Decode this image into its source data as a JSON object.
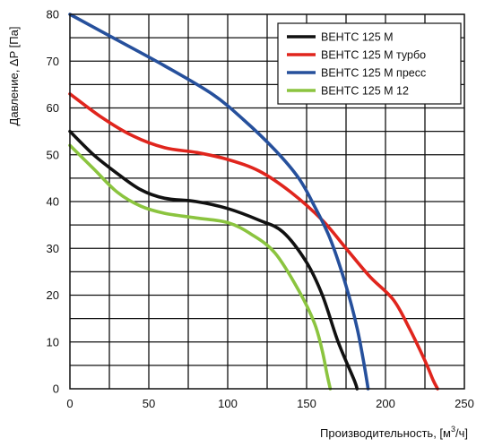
{
  "chart_data": {
    "type": "line",
    "xlabel": "Производительность, [м",
    "xlabel_sup": "3",
    "xlabel_tail": "/ч]",
    "ylabel": "Давление, ΔP [Па]",
    "xlim": [
      0,
      250
    ],
    "ylim": [
      0,
      80
    ],
    "x_ticks": [
      "0",
      "50",
      "100",
      "150",
      "200",
      "250"
    ],
    "y_ticks": [
      "0",
      "10",
      "20",
      "30",
      "40",
      "50",
      "60",
      "70",
      "80"
    ],
    "grid": true,
    "legend_position": "top-right",
    "series": [
      {
        "name": "ВЕНТС 125 М",
        "color": "#111111",
        "points": [
          [
            0,
            55
          ],
          [
            15,
            50
          ],
          [
            30,
            46
          ],
          [
            45,
            42.5
          ],
          [
            60,
            40.7
          ],
          [
            80,
            40
          ],
          [
            100,
            38.5
          ],
          [
            120,
            36
          ],
          [
            135,
            33.5
          ],
          [
            150,
            27
          ],
          [
            160,
            20
          ],
          [
            170,
            10
          ],
          [
            180,
            2
          ],
          [
            182,
            0
          ]
        ]
      },
      {
        "name": "ВЕНТС 125 М турбо",
        "color": "#e0251d",
        "points": [
          [
            0,
            63
          ],
          [
            20,
            58
          ],
          [
            40,
            54
          ],
          [
            60,
            51.5
          ],
          [
            80,
            50.5
          ],
          [
            100,
            49
          ],
          [
            120,
            46.5
          ],
          [
            140,
            42
          ],
          [
            160,
            36
          ],
          [
            175,
            30
          ],
          [
            190,
            24
          ],
          [
            205,
            19
          ],
          [
            215,
            13
          ],
          [
            225,
            6
          ],
          [
            230,
            2
          ],
          [
            233,
            0
          ]
        ]
      },
      {
        "name": "ВЕНТС 125 М пресс",
        "color": "#26509c",
        "points": [
          [
            0,
            80
          ],
          [
            30,
            74.5
          ],
          [
            60,
            69
          ],
          [
            90,
            63
          ],
          [
            110,
            57.5
          ],
          [
            130,
            51
          ],
          [
            145,
            45
          ],
          [
            155,
            39
          ],
          [
            165,
            32
          ],
          [
            175,
            22
          ],
          [
            182,
            13
          ],
          [
            186,
            6
          ],
          [
            189,
            0
          ]
        ]
      },
      {
        "name": "ВЕНТС 125 М  12",
        "color": "#8bc43f",
        "points": [
          [
            0,
            52
          ],
          [
            15,
            47
          ],
          [
            30,
            42
          ],
          [
            45,
            39
          ],
          [
            60,
            37.5
          ],
          [
            80,
            36.5
          ],
          [
            100,
            35.5
          ],
          [
            115,
            33
          ],
          [
            130,
            29
          ],
          [
            145,
            21
          ],
          [
            155,
            14
          ],
          [
            160,
            8
          ],
          [
            163,
            3
          ],
          [
            165,
            0
          ]
        ]
      }
    ]
  }
}
